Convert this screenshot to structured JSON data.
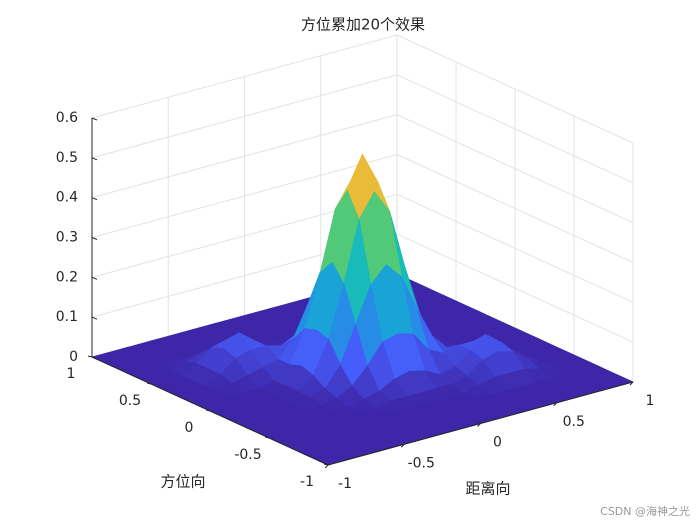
{
  "chart_data": {
    "type": "surface",
    "title": "方位累加20个效果",
    "xlabel": "距离向",
    "ylabel": "方位向",
    "x": [
      -1,
      -0.9,
      -0.8,
      -0.7,
      -0.6,
      -0.5,
      -0.4,
      -0.3,
      -0.2,
      -0.1,
      0,
      0.1,
      0.2,
      0.3,
      0.4,
      0.5,
      0.6,
      0.7,
      0.8,
      0.9,
      1
    ],
    "y": [
      -1,
      -0.9,
      -0.8,
      -0.7,
      -0.6,
      -0.5,
      -0.4,
      -0.3,
      -0.2,
      -0.1,
      0,
      0.1,
      0.2,
      0.3,
      0.4,
      0.5,
      0.6,
      0.7,
      0.8,
      0.9,
      1
    ],
    "z": [
      [
        0,
        0,
        0,
        0,
        0,
        0,
        0,
        0,
        0,
        0,
        0,
        0,
        0,
        0,
        0,
        0,
        0,
        0,
        0,
        0,
        0
      ],
      [
        0,
        0,
        0,
        0,
        0,
        0,
        0,
        0,
        0,
        0,
        0,
        0,
        0,
        0,
        0,
        0,
        0,
        0,
        0,
        0,
        0
      ],
      [
        0,
        0,
        0,
        0,
        0,
        0,
        0,
        0,
        0,
        0,
        0,
        0,
        0,
        0,
        0,
        0,
        0,
        0,
        0,
        0,
        0
      ],
      [
        0,
        0,
        0,
        0,
        0,
        0,
        0,
        0,
        0,
        0,
        0,
        0,
        0,
        0,
        0,
        0,
        0,
        0,
        0,
        0,
        0
      ],
      [
        0,
        0,
        0,
        0,
        0,
        0,
        0,
        0,
        0,
        0,
        0,
        0,
        0,
        0.01,
        0.02,
        0.02,
        0.02,
        0.01,
        0,
        0,
        0
      ],
      [
        0,
        0,
        0,
        0,
        0,
        0,
        0,
        0,
        0.01,
        0.01,
        0.01,
        0.01,
        0.01,
        0.02,
        0.05,
        0.06,
        0.05,
        0.02,
        0,
        0,
        0
      ],
      [
        0,
        0,
        0,
        0,
        0,
        0,
        0,
        0.01,
        0.02,
        0.04,
        0.05,
        0.04,
        0.02,
        0.03,
        0.06,
        0.09,
        0.06,
        0.02,
        0,
        0,
        0
      ],
      [
        0,
        0,
        0,
        0,
        0,
        0,
        0.01,
        0.03,
        0.07,
        0.12,
        0.13,
        0.12,
        0.07,
        0.05,
        0.06,
        0.06,
        0.05,
        0.02,
        0,
        0,
        0
      ],
      [
        0,
        0,
        0,
        0,
        0,
        0.01,
        0.02,
        0.07,
        0.16,
        0.25,
        0.29,
        0.25,
        0.16,
        0.08,
        0.04,
        0.03,
        0.02,
        0.01,
        0,
        0,
        0
      ],
      [
        0,
        0,
        0,
        0,
        0,
        0.01,
        0.04,
        0.12,
        0.25,
        0.4,
        0.46,
        0.4,
        0.25,
        0.12,
        0.04,
        0.01,
        0,
        0,
        0,
        0,
        0
      ],
      [
        0,
        0,
        0,
        0,
        0,
        0.01,
        0.05,
        0.13,
        0.29,
        0.46,
        0.54,
        0.46,
        0.29,
        0.13,
        0.05,
        0.01,
        0,
        0,
        0,
        0,
        0
      ],
      [
        0,
        0,
        0,
        0,
        0,
        0.01,
        0.04,
        0.12,
        0.25,
        0.4,
        0.46,
        0.4,
        0.25,
        0.12,
        0.04,
        0.01,
        0,
        0,
        0,
        0,
        0
      ],
      [
        0,
        0,
        0,
        0.01,
        0.02,
        0.03,
        0.04,
        0.08,
        0.16,
        0.25,
        0.29,
        0.25,
        0.16,
        0.07,
        0.02,
        0.01,
        0,
        0,
        0,
        0,
        0
      ],
      [
        0,
        0,
        0,
        0.02,
        0.05,
        0.06,
        0.06,
        0.05,
        0.07,
        0.12,
        0.13,
        0.12,
        0.07,
        0.03,
        0.01,
        0,
        0,
        0,
        0,
        0,
        0
      ],
      [
        0,
        0,
        0,
        0.02,
        0.06,
        0.09,
        0.06,
        0.03,
        0.02,
        0.04,
        0.05,
        0.04,
        0.02,
        0.01,
        0,
        0,
        0,
        0,
        0,
        0,
        0
      ],
      [
        0,
        0,
        0,
        0.02,
        0.05,
        0.06,
        0.05,
        0.02,
        0.01,
        0.01,
        0.01,
        0.01,
        0.01,
        0,
        0,
        0,
        0,
        0,
        0,
        0,
        0
      ],
      [
        0,
        0,
        0,
        0.01,
        0.02,
        0.02,
        0.02,
        0.01,
        0,
        0,
        0,
        0,
        0,
        0,
        0,
        0,
        0,
        0,
        0,
        0,
        0
      ],
      [
        0,
        0,
        0,
        0,
        0,
        0,
        0,
        0,
        0,
        0,
        0,
        0,
        0,
        0,
        0,
        0,
        0,
        0,
        0,
        0,
        0
      ],
      [
        0,
        0,
        0,
        0,
        0,
        0,
        0,
        0,
        0,
        0,
        0,
        0,
        0,
        0,
        0,
        0,
        0,
        0,
        0,
        0,
        0
      ],
      [
        0,
        0,
        0,
        0,
        0,
        0,
        0,
        0,
        0,
        0,
        0,
        0,
        0,
        0,
        0,
        0,
        0,
        0,
        0,
        0,
        0
      ],
      [
        0,
        0,
        0,
        0,
        0,
        0,
        0,
        0,
        0,
        0,
        0,
        0,
        0,
        0,
        0,
        0,
        0,
        0,
        0,
        0,
        0
      ]
    ],
    "xlim": [
      -1,
      1
    ],
    "ylim": [
      -1,
      1
    ],
    "zlim": [
      0,
      0.6
    ],
    "xticks": [
      -1,
      -0.5,
      0,
      0.5,
      1
    ],
    "yticks": [
      -1,
      -0.5,
      0,
      0.5,
      1
    ],
    "zticks": [
      0,
      0.1,
      0.2,
      0.3,
      0.4,
      0.5,
      0.6
    ],
    "colormap": "parula",
    "grid": true,
    "watermark": "CSDN @海神之光"
  }
}
